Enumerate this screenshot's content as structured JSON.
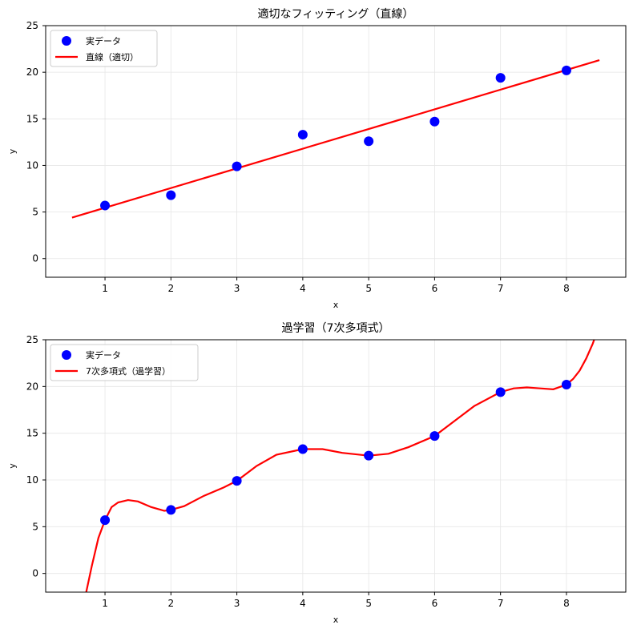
{
  "chart_data": [
    {
      "type": "scatter",
      "title": "適切なフィッティング（直線）",
      "xlabel": "x",
      "ylabel": "y",
      "xlim": [
        0.1,
        8.9
      ],
      "ylim": [
        -2,
        25
      ],
      "xticks": [
        1,
        2,
        3,
        4,
        5,
        6,
        7,
        8
      ],
      "yticks": [
        0,
        5,
        10,
        15,
        20,
        25
      ],
      "grid": true,
      "legend_position": "upper-left",
      "series": [
        {
          "name": "実データ",
          "kind": "scatter",
          "color": "#0000ff",
          "x": [
            1,
            2,
            3,
            4,
            5,
            6,
            7,
            8
          ],
          "y": [
            5.7,
            6.8,
            9.9,
            13.3,
            12.6,
            14.7,
            19.4,
            20.2
          ]
        },
        {
          "name": "直線（適切）",
          "kind": "line",
          "color": "#ff0000",
          "x": [
            0.5,
            8.5
          ],
          "y": [
            4.4,
            21.3
          ]
        }
      ]
    },
    {
      "type": "scatter",
      "title": "過学習（7次多項式）",
      "xlabel": "x",
      "ylabel": "y",
      "xlim": [
        0.1,
        8.9
      ],
      "ylim": [
        -2,
        25
      ],
      "xticks": [
        1,
        2,
        3,
        4,
        5,
        6,
        7,
        8
      ],
      "yticks": [
        0,
        5,
        10,
        15,
        20,
        25
      ],
      "grid": true,
      "legend_position": "upper-left",
      "series": [
        {
          "name": "実データ",
          "kind": "scatter",
          "color": "#0000ff",
          "x": [
            1,
            2,
            3,
            4,
            5,
            6,
            7,
            8
          ],
          "y": [
            5.7,
            6.8,
            9.9,
            13.3,
            12.6,
            14.7,
            19.4,
            20.2
          ]
        },
        {
          "name": "7次多項式（過学習）",
          "kind": "line",
          "color": "#ff0000",
          "x": [
            0.7,
            0.8,
            0.9,
            1.0,
            1.1,
            1.2,
            1.35,
            1.5,
            1.7,
            1.9,
            2.0,
            2.2,
            2.5,
            2.8,
            3.0,
            3.3,
            3.6,
            4.0,
            4.3,
            4.6,
            5.0,
            5.3,
            5.6,
            6.0,
            6.3,
            6.6,
            7.0,
            7.2,
            7.4,
            7.6,
            7.8,
            8.0,
            8.1,
            8.2,
            8.3,
            8.4,
            8.45
          ],
          "y": [
            -2.5,
            0.8,
            3.8,
            5.7,
            7.1,
            7.6,
            7.85,
            7.7,
            7.1,
            6.7,
            6.8,
            7.2,
            8.3,
            9.2,
            9.9,
            11.5,
            12.7,
            13.3,
            13.3,
            12.9,
            12.6,
            12.8,
            13.5,
            14.7,
            16.3,
            17.9,
            19.4,
            19.8,
            19.9,
            19.8,
            19.7,
            20.2,
            20.8,
            21.7,
            23.0,
            24.6,
            25.6
          ]
        }
      ]
    }
  ]
}
